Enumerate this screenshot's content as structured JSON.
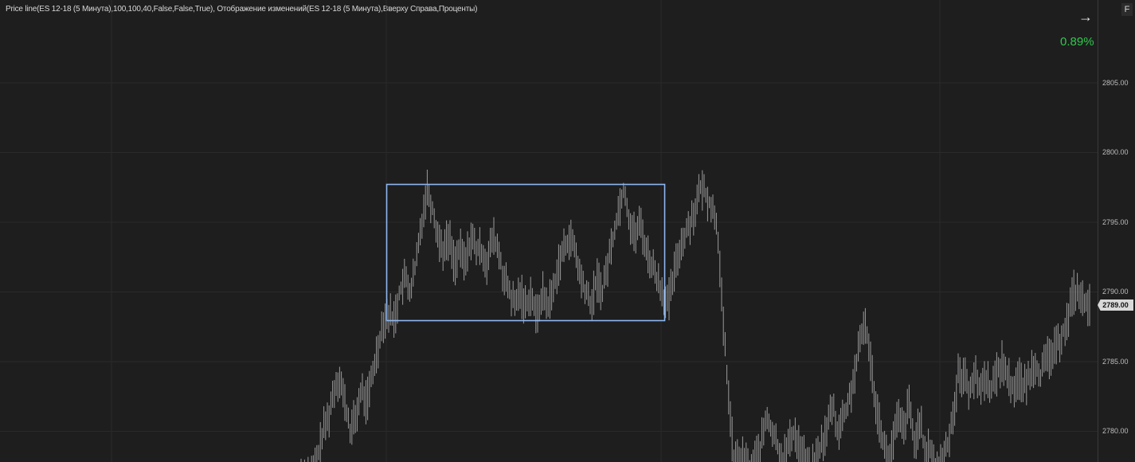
{
  "header": {
    "indicator_text": "Price line(ES 12-18 (5 Минута),100,100,40,False,False,True), Отображение изменений(ES 12-18 (5 Минута),Вверху Справа,Проценты)"
  },
  "change_display": {
    "value": "0.89%",
    "color": "#2fc94a"
  },
  "price_axis": {
    "ticks": [
      "2805.00",
      "2800.00",
      "2795.00",
      "2790.00",
      "2785.00",
      "2780.00"
    ],
    "current_price": "2789.00"
  },
  "toolbar": {
    "arrow_icon": "arrow-right-icon",
    "corner_letter": "F"
  },
  "colors": {
    "background": "#1e1e1f",
    "bars": "#9a9a9a",
    "rectangle": "#8fb7ef",
    "grid": "#2a2a2a"
  },
  "chart_data": {
    "type": "ohlc",
    "instrument": "ES 12-18",
    "timeframe": "5 Минута",
    "ylim": [
      2777.5,
      2810.5
    ],
    "y_ticks": [
      2780,
      2785,
      2790,
      2795,
      2800,
      2805
    ],
    "current_price": 2789.0,
    "close_path": [
      2777,
      2777,
      2777,
      2778,
      2780,
      2781,
      2783,
      2784,
      2782,
      2780,
      2781,
      2783,
      2782,
      2784,
      2786,
      2788,
      2788.5,
      2788,
      2790,
      2791,
      2790,
      2792,
      2795,
      2797.5,
      2796,
      2794,
      2793,
      2794,
      2792,
      2793,
      2792,
      2794,
      2793,
      2793,
      2792,
      2794,
      2793,
      2791,
      2790,
      2789,
      2790,
      2789,
      2790,
      2788,
      2790,
      2789,
      2790,
      2792,
      2793,
      2794,
      2793,
      2791,
      2790,
      2789,
      2791,
      2790,
      2792,
      2794,
      2796,
      2797.5,
      2795,
      2794,
      2795,
      2793,
      2792,
      2791,
      2790,
      2789,
      2791,
      2793,
      2794,
      2795,
      2796,
      2797.5,
      2797,
      2796,
      2795,
      2788,
      2783,
      2778,
      2778,
      2778,
      2777,
      2778,
      2779,
      2781,
      2780,
      2779,
      2778,
      2779,
      2780,
      2779,
      2778,
      2777,
      2778,
      2779,
      2780,
      2782,
      2780,
      2781,
      2782,
      2784,
      2786,
      2788,
      2785,
      2782,
      2780,
      2778,
      2779,
      2781,
      2780,
      2782,
      2779,
      2781,
      2778,
      2779,
      2777,
      2778,
      2779,
      2781,
      2784,
      2784,
      2783,
      2784,
      2783,
      2784,
      2783,
      2784,
      2785,
      2784,
      2783,
      2784,
      2783,
      2784,
      2785,
      2784,
      2785,
      2785.5,
      2786,
      2787,
      2788,
      2790,
      2790,
      2789,
      2789
    ]
  }
}
